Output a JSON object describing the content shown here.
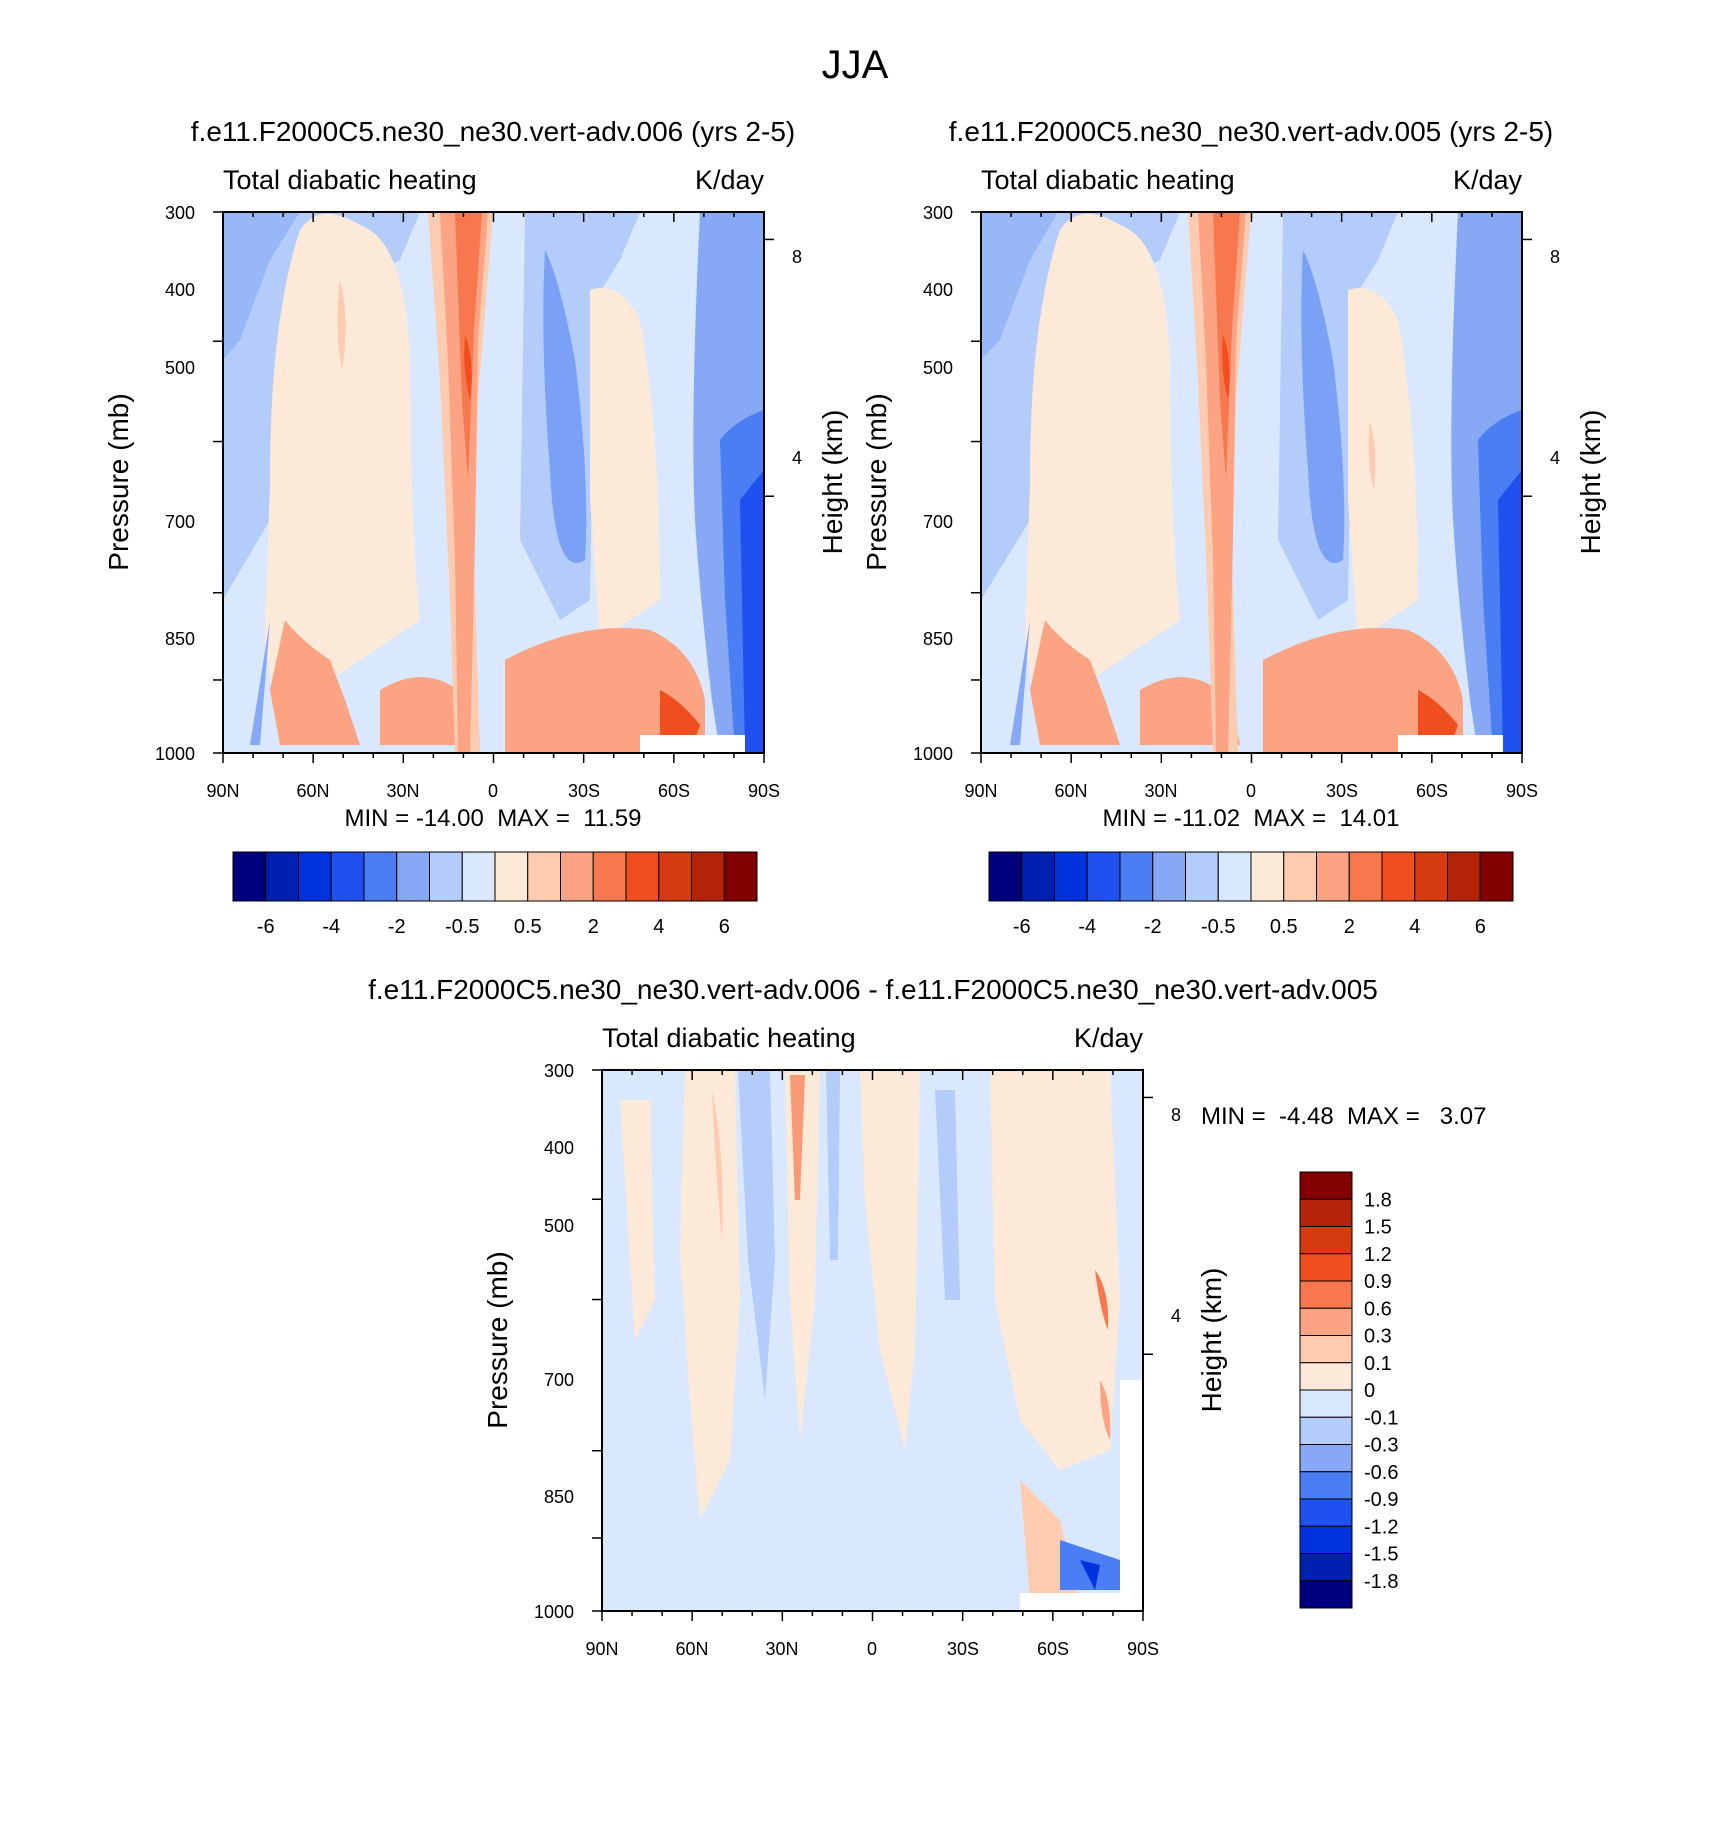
{
  "page_title": "JJA",
  "colors": {
    "cb_main": [
      "#00007f",
      "#0020b0",
      "#0033dd",
      "#1f50f0",
      "#4a7ef2",
      "#86a8f5",
      "#b3ccfa",
      "#d9e8fc",
      "#fde9d8",
      "#fdcbb0",
      "#fba383",
      "#f7784e",
      "#f04e1e",
      "#d53a10",
      "#b3230a",
      "#840000"
    ],
    "cb_diff": [
      "#00007f",
      "#0020b0",
      "#0033dd",
      "#1f50f0",
      "#4a7ef2",
      "#86a8f5",
      "#b3ccfa",
      "#d9e8fc",
      "#fde9d8",
      "#fdcbb0",
      "#fba383",
      "#f7784e",
      "#f04e1e",
      "#d53a10",
      "#b3230a",
      "#840000"
    ]
  },
  "chart_data": [
    {
      "type": "heatmap",
      "title": "f.e11.F2000C5.ne30_ne30.vert-adv.006 (yrs 2-5)",
      "left_string": "Total diabatic heating",
      "right_string": "K/day",
      "ylabel": "Pressure (mb)",
      "ylabel_right": "Height (km)",
      "x_ticks": [
        "90N",
        "60N",
        "30N",
        "0",
        "30S",
        "60S",
        "90S"
      ],
      "y_ticks": [
        "300",
        "400",
        "500",
        "700",
        "850",
        "1000"
      ],
      "y_ticks_right": [
        "8",
        "4"
      ],
      "ylim": [
        1000,
        300
      ],
      "min_max": "MIN = -14.00  MAX =  11.59",
      "colorbar_labels": [
        "-6",
        "-4",
        "-2",
        "-0.5",
        "0.5",
        "2",
        "4",
        "6"
      ],
      "levels": [
        -6,
        -5,
        -4,
        -3,
        -2,
        -1,
        -0.5,
        0,
        0.5,
        1,
        2,
        3,
        4,
        5,
        6
      ]
    },
    {
      "type": "heatmap",
      "title": "f.e11.F2000C5.ne30_ne30.vert-adv.005 (yrs 2-5)",
      "left_string": "Total diabatic heating",
      "right_string": "K/day",
      "ylabel": "Pressure (mb)",
      "ylabel_right": "Height (km)",
      "x_ticks": [
        "90N",
        "60N",
        "30N",
        "0",
        "30S",
        "60S",
        "90S"
      ],
      "y_ticks": [
        "300",
        "400",
        "500",
        "700",
        "850",
        "1000"
      ],
      "y_ticks_right": [
        "8",
        "4"
      ],
      "ylim": [
        1000,
        300
      ],
      "min_max": "MIN = -11.02  MAX =  14.01",
      "colorbar_labels": [
        "-6",
        "-4",
        "-2",
        "-0.5",
        "0.5",
        "2",
        "4",
        "6"
      ],
      "levels": [
        -6,
        -5,
        -4,
        -3,
        -2,
        -1,
        -0.5,
        0,
        0.5,
        1,
        2,
        3,
        4,
        5,
        6
      ]
    },
    {
      "type": "heatmap",
      "title": "f.e11.F2000C5.ne30_ne30.vert-adv.006 - f.e11.F2000C5.ne30_ne30.vert-adv.005",
      "left_string": "Total diabatic heating",
      "right_string": "K/day",
      "ylabel": "Pressure (mb)",
      "ylabel_right": "Height (km)",
      "x_ticks": [
        "90N",
        "60N",
        "30N",
        "0",
        "30S",
        "60S",
        "90S"
      ],
      "y_ticks": [
        "300",
        "400",
        "500",
        "700",
        "850",
        "1000"
      ],
      "y_ticks_right": [
        "8",
        "4"
      ],
      "ylim": [
        1000,
        300
      ],
      "min_max": "MIN =  -4.48  MAX =   3.07",
      "colorbar_labels": [
        "1.8",
        "1.5",
        "1.2",
        "0.9",
        "0.6",
        "0.3",
        "0.1",
        "0",
        "-0.1",
        "-0.3",
        "-0.6",
        "-0.9",
        "-1.2",
        "-1.5",
        "-1.8"
      ],
      "levels": [
        -1.8,
        -1.5,
        -1.2,
        -0.9,
        -0.6,
        -0.3,
        -0.1,
        0,
        0.1,
        0.3,
        0.6,
        0.9,
        1.2,
        1.5,
        1.8
      ]
    }
  ]
}
